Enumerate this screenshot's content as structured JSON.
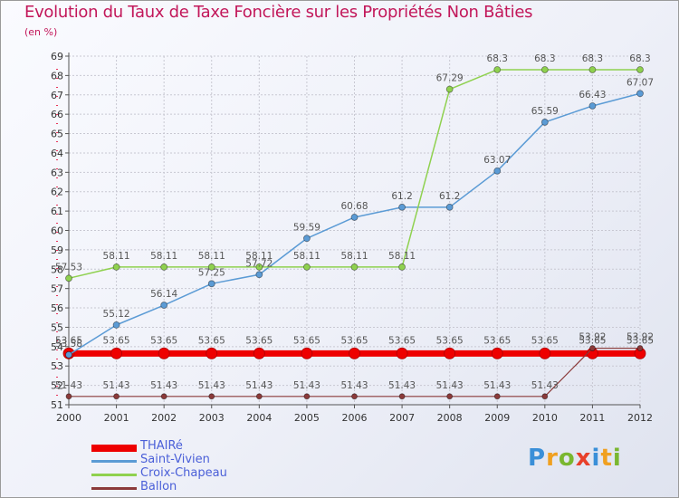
{
  "title": "Evolution du Taux de Taxe Foncière sur les Propriétés Non Bâties",
  "subtitle": "(en %)",
  "brand": {
    "name": "Proxiti",
    "letters": [
      {
        "ch": "P",
        "color": "#3a8fd8"
      },
      {
        "ch": "r",
        "color": "#f0a020"
      },
      {
        "ch": "o",
        "color": "#7ab730"
      },
      {
        "ch": "x",
        "color": "#e8402a"
      },
      {
        "ch": "i",
        "color": "#3a8fd8"
      },
      {
        "ch": "t",
        "color": "#f0a020"
      },
      {
        "ch": "i",
        "color": "#7ab730"
      }
    ]
  },
  "chart_data": {
    "type": "line",
    "title": "Evolution du Taux de Taxe Foncière sur les Propriétés Non Bâties",
    "ylabel": "(en %)",
    "x": [
      "2000",
      "2001",
      "2002",
      "2003",
      "2004",
      "2005",
      "2006",
      "2007",
      "2008",
      "2009",
      "2010",
      "2011",
      "2012"
    ],
    "ylim": [
      51,
      69
    ],
    "yticks": [
      "51",
      "52",
      "53",
      "54",
      "55",
      "56",
      "57",
      "58",
      "59",
      "60",
      "61",
      "62",
      "63",
      "64",
      "65",
      "66",
      "67",
      "68",
      "69"
    ],
    "legend_position": "bottom-left",
    "series": [
      {
        "name": "THAIRé",
        "color": "#ee0000",
        "line_width": 7,
        "marker_radius": 6,
        "values": [
          53.65,
          53.65,
          53.65,
          53.65,
          53.65,
          53.65,
          53.65,
          53.65,
          53.65,
          53.65,
          53.65,
          53.65,
          53.65
        ],
        "labels": [
          "53.65",
          "53.65",
          "53.65",
          "53.65",
          "53.65",
          "53.65",
          "53.65",
          "53.65",
          "53.65",
          "53.65",
          "53.65",
          "53.65",
          "53.65"
        ]
      },
      {
        "name": "Saint-Vivien",
        "color": "#5b9bd5",
        "line_width": 1.5,
        "marker_radius": 3.5,
        "values": [
          53.58,
          55.12,
          56.14,
          57.25,
          57.72,
          59.59,
          60.68,
          61.2,
          61.2,
          63.07,
          65.59,
          66.43,
          67.07
        ],
        "labels": [
          "53.58",
          "55.12",
          "56.14",
          "57.25",
          "57.72",
          "59.59",
          "60.68",
          "61.2",
          "61.2",
          "63.07",
          "65.59",
          "66.43",
          "67.07"
        ]
      },
      {
        "name": "Croix-Chapeau",
        "color": "#8fd14f",
        "line_width": 1.5,
        "marker_radius": 3.5,
        "values": [
          57.53,
          58.11,
          58.11,
          58.11,
          58.11,
          58.11,
          58.11,
          58.11,
          67.29,
          68.3,
          68.3,
          68.3,
          68.3
        ],
        "labels": [
          "57.53",
          "58.11",
          "58.11",
          "58.11",
          "58.11",
          "58.11",
          "58.11",
          "58.11",
          "67.29",
          "68.3",
          "68.3",
          "68.3",
          "68.3"
        ]
      },
      {
        "name": "Ballon",
        "color": "#8b3a3a",
        "line_width": 1.2,
        "marker_radius": 3,
        "values": [
          51.43,
          51.43,
          51.43,
          51.43,
          51.43,
          51.43,
          51.43,
          51.43,
          51.43,
          51.43,
          51.43,
          53.92,
          53.92
        ],
        "labels": [
          "51.43",
          "51.43",
          "51.43",
          "51.43",
          "51.43",
          "51.43",
          "51.43",
          "51.43",
          "51.43",
          "51.43",
          "51.43",
          "53.92",
          "53.92"
        ]
      }
    ]
  }
}
